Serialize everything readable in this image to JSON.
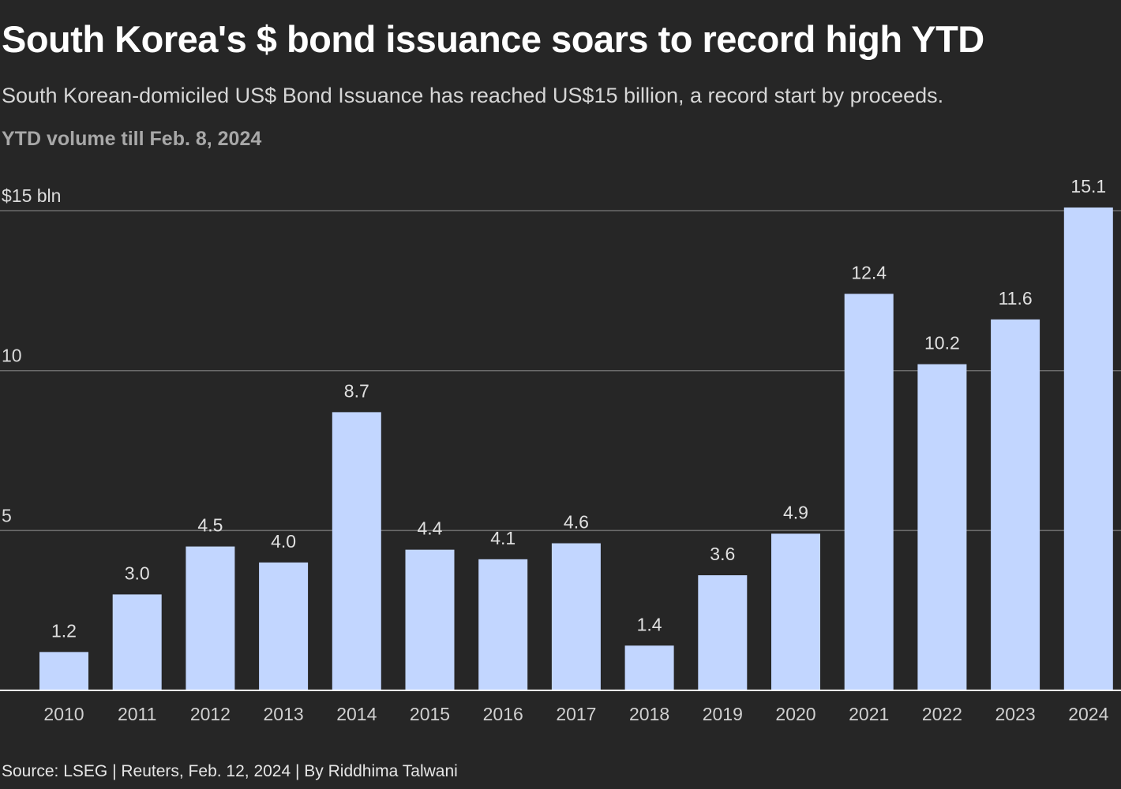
{
  "header": {
    "title": "South Korea's $ bond issuance soars to record high YTD",
    "subtitle": "South Korean-domiciled US$ Bond Issuance has reached US$15 billion, a record start by proceeds.",
    "chart_label": "YTD volume till Feb. 8, 2024"
  },
  "footer": {
    "source": "Source: LSEG | Reuters, Feb. 12, 2024 | By Riddhima Talwani"
  },
  "colors": {
    "background": "#262626",
    "bar": "#c2d6ff",
    "gridline": "#6b6b6b",
    "baseline": "#ffffff",
    "label_text": "#e0e0e0"
  },
  "chart_data": {
    "type": "bar",
    "title": "South Korea's $ bond issuance soars to record high YTD",
    "subtitle": "YTD volume till Feb. 8, 2024",
    "xlabel": "",
    "ylabel": "",
    "ylim": [
      0,
      15
    ],
    "yticks": [
      {
        "value": 5,
        "label": "5"
      },
      {
        "value": 10,
        "label": "10"
      },
      {
        "value": 15,
        "label": "$15 bln"
      }
    ],
    "grid": true,
    "categories": [
      "2010",
      "2011",
      "2012",
      "2013",
      "2014",
      "2015",
      "2016",
      "2017",
      "2018",
      "2019",
      "2020",
      "2021",
      "2022",
      "2023",
      "2024"
    ],
    "values": [
      1.2,
      3.0,
      4.5,
      4.0,
      8.7,
      4.4,
      4.1,
      4.6,
      1.4,
      3.6,
      4.9,
      12.4,
      10.2,
      11.6,
      15.1
    ],
    "data_labels": [
      "1.2",
      "3.0",
      "4.5",
      "4.0",
      "8.7",
      "4.4",
      "4.1",
      "4.6",
      "1.4",
      "3.6",
      "4.9",
      "12.4",
      "10.2",
      "11.6",
      "15.1"
    ]
  }
}
